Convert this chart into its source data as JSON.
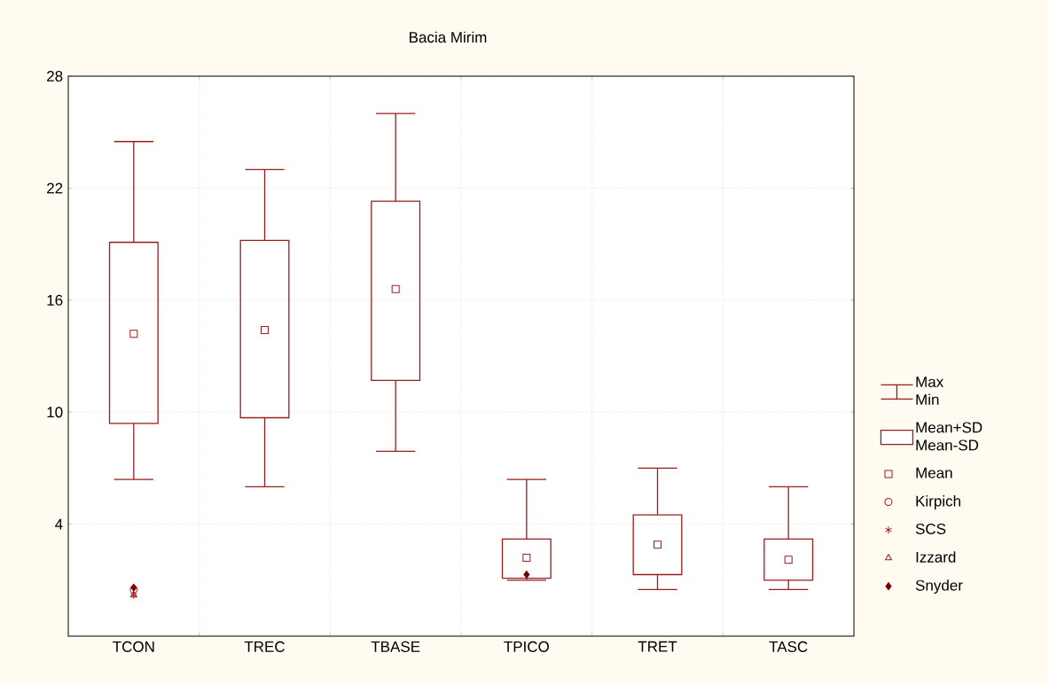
{
  "chart_data": {
    "type": "box",
    "title": "Bacia Mirim",
    "categories": [
      "TCON",
      "TREC",
      "TBASE",
      "TPICO",
      "TRET",
      "TASC"
    ],
    "ylim": [
      -2,
      28
    ],
    "yticks": [
      4,
      10,
      16,
      22,
      28
    ],
    "grid": true,
    "legend": "right",
    "annotations": [
      "Max",
      "Min",
      "Mean+SD",
      "Mean-SD"
    ],
    "series": [
      {
        "type": "box",
        "color": "#9b1c1c",
        "boxes": [
          {
            "low": 6.4,
            "q1": 9.4,
            "q3": 19.1,
            "high": 24.5
          },
          {
            "low": 6.0,
            "q1": 9.7,
            "q3": 19.2,
            "high": 23.0
          },
          {
            "low": 7.9,
            "q1": 11.7,
            "q3": 21.3,
            "high": 26.0
          },
          {
            "low": 1.0,
            "q1": 1.1,
            "q3": 3.2,
            "high": 6.4
          },
          {
            "low": 0.5,
            "q1": 1.3,
            "q3": 4.5,
            "high": 7.0
          },
          {
            "low": 0.5,
            "q1": 1.0,
            "q3": 3.2,
            "high": 6.0
          }
        ]
      },
      {
        "type": "scatter",
        "name": "Mean",
        "color": "#9b1c1c",
        "marker": "square",
        "values": [
          14.2,
          14.4,
          16.6,
          2.2,
          2.9,
          2.1
        ]
      },
      {
        "type": "scatter",
        "name": "Kirpich",
        "color": "#9b1c1c",
        "marker": "circle",
        "values": [
          0.5,
          null,
          null,
          null,
          null,
          null
        ]
      },
      {
        "type": "scatter",
        "name": "SCS",
        "color": "#9b1c1c",
        "marker": "cross",
        "values": [
          0.2,
          null,
          null,
          null,
          null,
          null
        ]
      },
      {
        "type": "scatter",
        "name": "Izzard",
        "color": "#9b1c1c",
        "marker": "triangle",
        "values": [
          0.2,
          null,
          null,
          null,
          null,
          null
        ]
      },
      {
        "type": "scatter",
        "name": "Snyder",
        "color": "#7a0000",
        "marker": "diamond",
        "values": [
          0.6,
          null,
          null,
          1.3,
          null,
          null
        ]
      }
    ]
  }
}
